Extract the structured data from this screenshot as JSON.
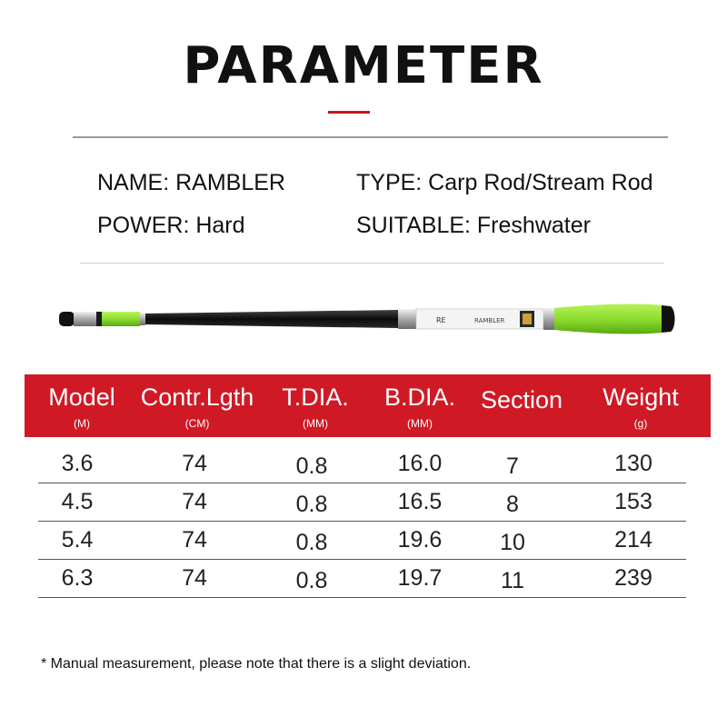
{
  "header": {
    "title": "PARAMETER",
    "accent_color": "#c4161c"
  },
  "specs": {
    "name": "NAME: RAMBLER",
    "type": "TYPE: Carp Rod/Stream Rod",
    "power": "POWER: Hard",
    "suitable": "SUITABLE: Freshwater"
  },
  "product_image": {
    "icon": "fishing-rod-image",
    "handle_color": "#8cdd2e",
    "blank_color": "#1a1a1a",
    "emblem_texts": [
      "RE",
      "RAMBLER"
    ]
  },
  "table": {
    "header_color": "#cf1a25",
    "columns": [
      {
        "label": "Model",
        "unit": "(M)"
      },
      {
        "label": "Contr.Lgth",
        "unit": "(CM)"
      },
      {
        "label": "T.DIA.",
        "unit": "(MM)"
      },
      {
        "label": "B.DIA.",
        "unit": "(MM)"
      },
      {
        "label": "Section",
        "unit": ""
      },
      {
        "label": "Weight",
        "unit": "(g)"
      }
    ],
    "rows": [
      [
        "3.6",
        "74",
        "0.8",
        "16.0",
        "7",
        "130"
      ],
      [
        "4.5",
        "74",
        "0.8",
        "16.5",
        "8",
        "153"
      ],
      [
        "5.4",
        "74",
        "0.8",
        "19.6",
        "10",
        "214"
      ],
      [
        "6.3",
        "74",
        "0.8",
        "19.7",
        "11",
        "239"
      ]
    ]
  },
  "footnote": "* Manual measurement, please note that there is a slight deviation."
}
